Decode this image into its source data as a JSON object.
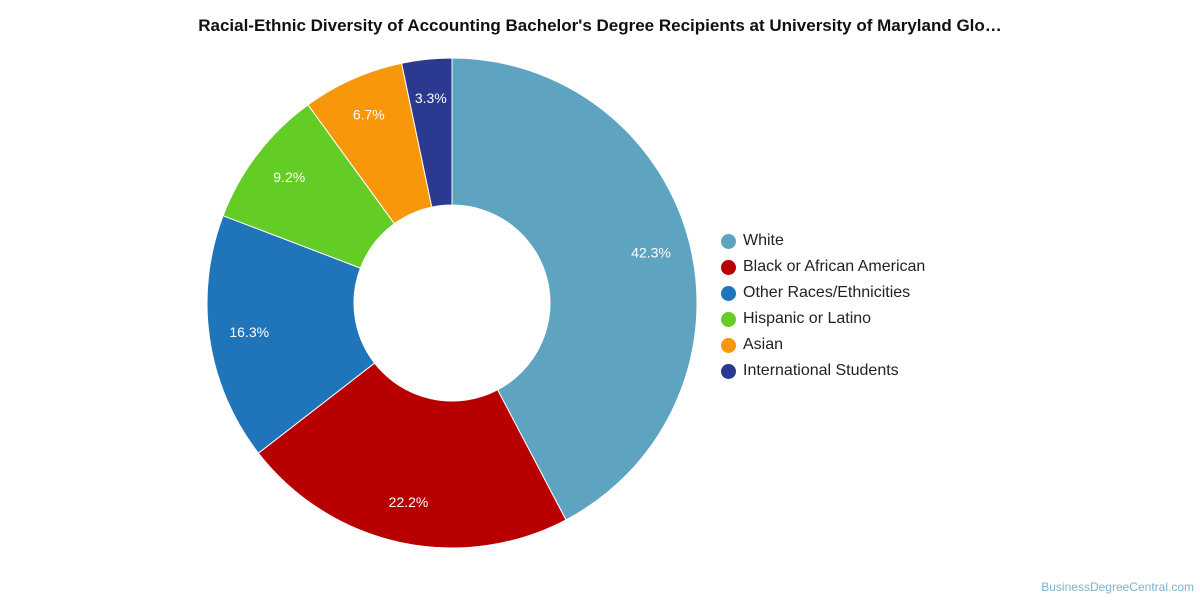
{
  "chart_data": {
    "type": "pie",
    "title": "Racial-Ethnic Diversity of Accounting Bachelor's Degree Recipients at University of Maryland Glo…",
    "donut": true,
    "legend_position": "right",
    "slices": [
      {
        "label": "White",
        "value": 42.3,
        "display": "42.3%",
        "color": "#5ea3c0"
      },
      {
        "label": "Black or African American",
        "value": 22.2,
        "display": "22.2%",
        "color": "#b80000"
      },
      {
        "label": "Other Races/Ethnicities",
        "value": 16.3,
        "display": "16.3%",
        "color": "#1f74ba"
      },
      {
        "label": "Hispanic or Latino",
        "value": 9.2,
        "display": "9.2%",
        "color": "#63cc25"
      },
      {
        "label": "Asian",
        "value": 6.7,
        "display": "6.7%",
        "color": "#f79709"
      },
      {
        "label": "International Students",
        "value": 3.3,
        "display": "3.3%",
        "color": "#2b3990"
      }
    ]
  },
  "watermark": "BusinessDegreeCentral.com"
}
